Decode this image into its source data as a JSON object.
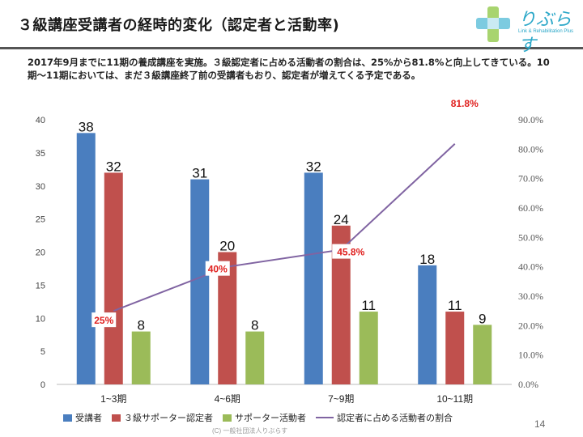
{
  "slide": {
    "title": "３級講座受講者の経時的変化（認定者と活動率)",
    "description": "2017年9月までに11期の養成講座を実施。３級認定者に占める活動者の割合は、25%から81.8%と向上してきている。10期〜11期においては、まだ３級講座終了前の受講者もおり、認定者が増えてくる予定である。",
    "page_number": "14",
    "footer": "(C) 一般社団法人りぶらす",
    "logo": {
      "text": "りぶらす",
      "subtitle": "Link & Rehabilitation Plus",
      "icon": "cross-logo-icon"
    }
  },
  "chart_data": {
    "type": "bar",
    "categories": [
      "1~3期",
      "4~6期",
      "7~9期",
      "10~11期"
    ],
    "series": [
      {
        "name": "受講者",
        "type": "bar",
        "color": "#4a7ebf",
        "values": [
          38,
          31,
          32,
          18
        ]
      },
      {
        "name": "３級サポーター認定者",
        "type": "bar",
        "color": "#c0504d",
        "values": [
          32,
          20,
          24,
          11
        ]
      },
      {
        "name": "サポーター活動者",
        "type": "bar",
        "color": "#9bbb59",
        "values": [
          8,
          8,
          11,
          9
        ]
      },
      {
        "name": "認定者に占める活動者の割合",
        "type": "line",
        "axis": "right",
        "color": "#8064a2",
        "values": [
          25,
          40,
          45.8,
          81.8
        ]
      }
    ],
    "bar_labels": [
      [
        "38",
        "32",
        "8"
      ],
      [
        "31",
        "20",
        "8"
      ],
      [
        "32",
        "24",
        "11"
      ],
      [
        "18",
        "11",
        "9"
      ]
    ],
    "rate_labels": [
      "25%",
      "40%",
      "45.8%",
      "81.8%"
    ],
    "y_left": {
      "min": 0,
      "max": 40,
      "ticks": [
        "0",
        "5",
        "10",
        "15",
        "20",
        "25",
        "30",
        "35",
        "40"
      ]
    },
    "y_right": {
      "min": 0,
      "max": 90,
      "ticks": [
        "0.0%",
        "10.0%",
        "20.0%",
        "30.0%",
        "40.0%",
        "50.0%",
        "60.0%",
        "70.0%",
        "80.0%",
        "90.0%"
      ]
    },
    "grid": false,
    "legend_position": "bottom"
  }
}
